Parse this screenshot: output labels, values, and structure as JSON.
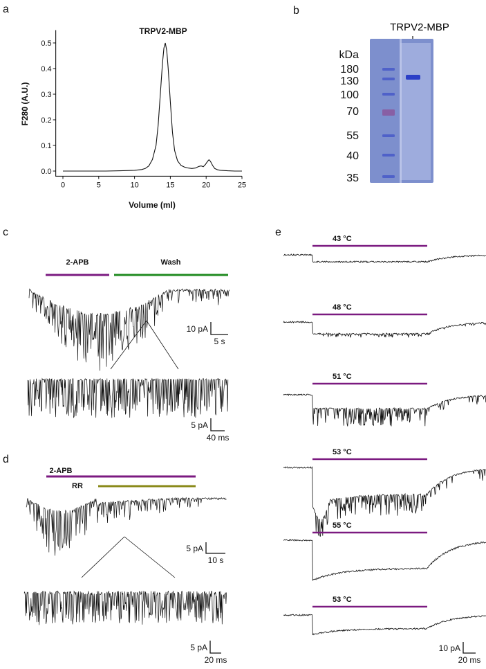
{
  "panels": {
    "a": "a",
    "b": "b",
    "c": "c",
    "d": "d",
    "e": "e"
  },
  "colors": {
    "trace": "#111111",
    "purple": "#7b1a80",
    "green": "#1f8a1f",
    "olive": "#8a8a1a",
    "gel_bg": "#7d8fcd",
    "gel_lane": "#a9b6e2",
    "band": "#2b3fc7",
    "marker": "#4a5cc9",
    "marker_70": "#8a5aa0"
  },
  "chart_data": [
    {
      "id": "a",
      "type": "line",
      "title": "TRPV2-MBP",
      "xlabel": "Volume (ml)",
      "ylabel": "F280 (A.U.)",
      "xlim": [
        -1,
        25
      ],
      "ylim": [
        -0.02,
        0.55
      ],
      "xticks": [
        0,
        5,
        10,
        15,
        20,
        25
      ],
      "xtick_labels": [
        "0",
        "5",
        "10",
        "15",
        "20",
        "25"
      ],
      "yticks": [
        0.0,
        0.1,
        0.2,
        0.3,
        0.4,
        0.5
      ],
      "ytick_labels": [
        "0.0",
        "0.1",
        "0.2",
        "0.3",
        "0.4",
        "0.5"
      ],
      "x": [
        0,
        2,
        4,
        6,
        8,
        10,
        11,
        11.5,
        12,
        12.5,
        13,
        13.3,
        13.6,
        13.9,
        14.1,
        14.3,
        14.5,
        14.7,
        15.0,
        15.3,
        15.6,
        16.0,
        16.5,
        17,
        17.5,
        18,
        18.5,
        19,
        19.3,
        19.6,
        19.9,
        20.2,
        20.4,
        20.6,
        20.9,
        21.2,
        21.6,
        22,
        23,
        24,
        25
      ],
      "y": [
        0.0,
        0.0,
        0.0,
        0.0,
        0.001,
        0.003,
        0.006,
        0.01,
        0.02,
        0.045,
        0.1,
        0.18,
        0.3,
        0.42,
        0.48,
        0.5,
        0.47,
        0.4,
        0.27,
        0.15,
        0.08,
        0.04,
        0.022,
        0.015,
        0.012,
        0.01,
        0.012,
        0.018,
        0.02,
        0.017,
        0.026,
        0.038,
        0.044,
        0.038,
        0.022,
        0.01,
        0.005,
        0.003,
        0.001,
        0.0,
        0.0
      ]
    },
    {
      "id": "b",
      "type": "gel",
      "label": "TRPV2-MBP",
      "unit": "kDa",
      "ladder": [
        "180",
        "130",
        "100",
        "70",
        "55",
        "40",
        "35"
      ]
    },
    {
      "id": "c",
      "type": "trace",
      "bars": [
        {
          "label": "2-APB",
          "color": "#7b1a80"
        },
        {
          "label": "Wash",
          "color": "#1f8a1f"
        }
      ],
      "scale_main": {
        "y": "10 pA",
        "x": "5 s"
      },
      "scale_zoom": {
        "y": "5 pA",
        "x": "40 ms"
      }
    },
    {
      "id": "d",
      "type": "trace",
      "bars": [
        {
          "label": "2-APB",
          "color": "#7b1a80"
        },
        {
          "label": "RR",
          "color": "#8a8a1a"
        }
      ],
      "scale_main": {
        "y": "5 pA",
        "x": "10 s"
      },
      "scale_zoom": {
        "y": "5 pA",
        "x": "20 ms"
      }
    },
    {
      "id": "e",
      "type": "trace",
      "temperatures": [
        "43 °C",
        "48 °C",
        "51 °C",
        "53 °C",
        "55 °C",
        "53 °C"
      ],
      "temp_values": [
        43,
        48,
        51,
        53,
        55,
        53
      ],
      "unit_prefix": "o",
      "scale": {
        "y": "10 pA",
        "x": "20 ms"
      }
    }
  ]
}
